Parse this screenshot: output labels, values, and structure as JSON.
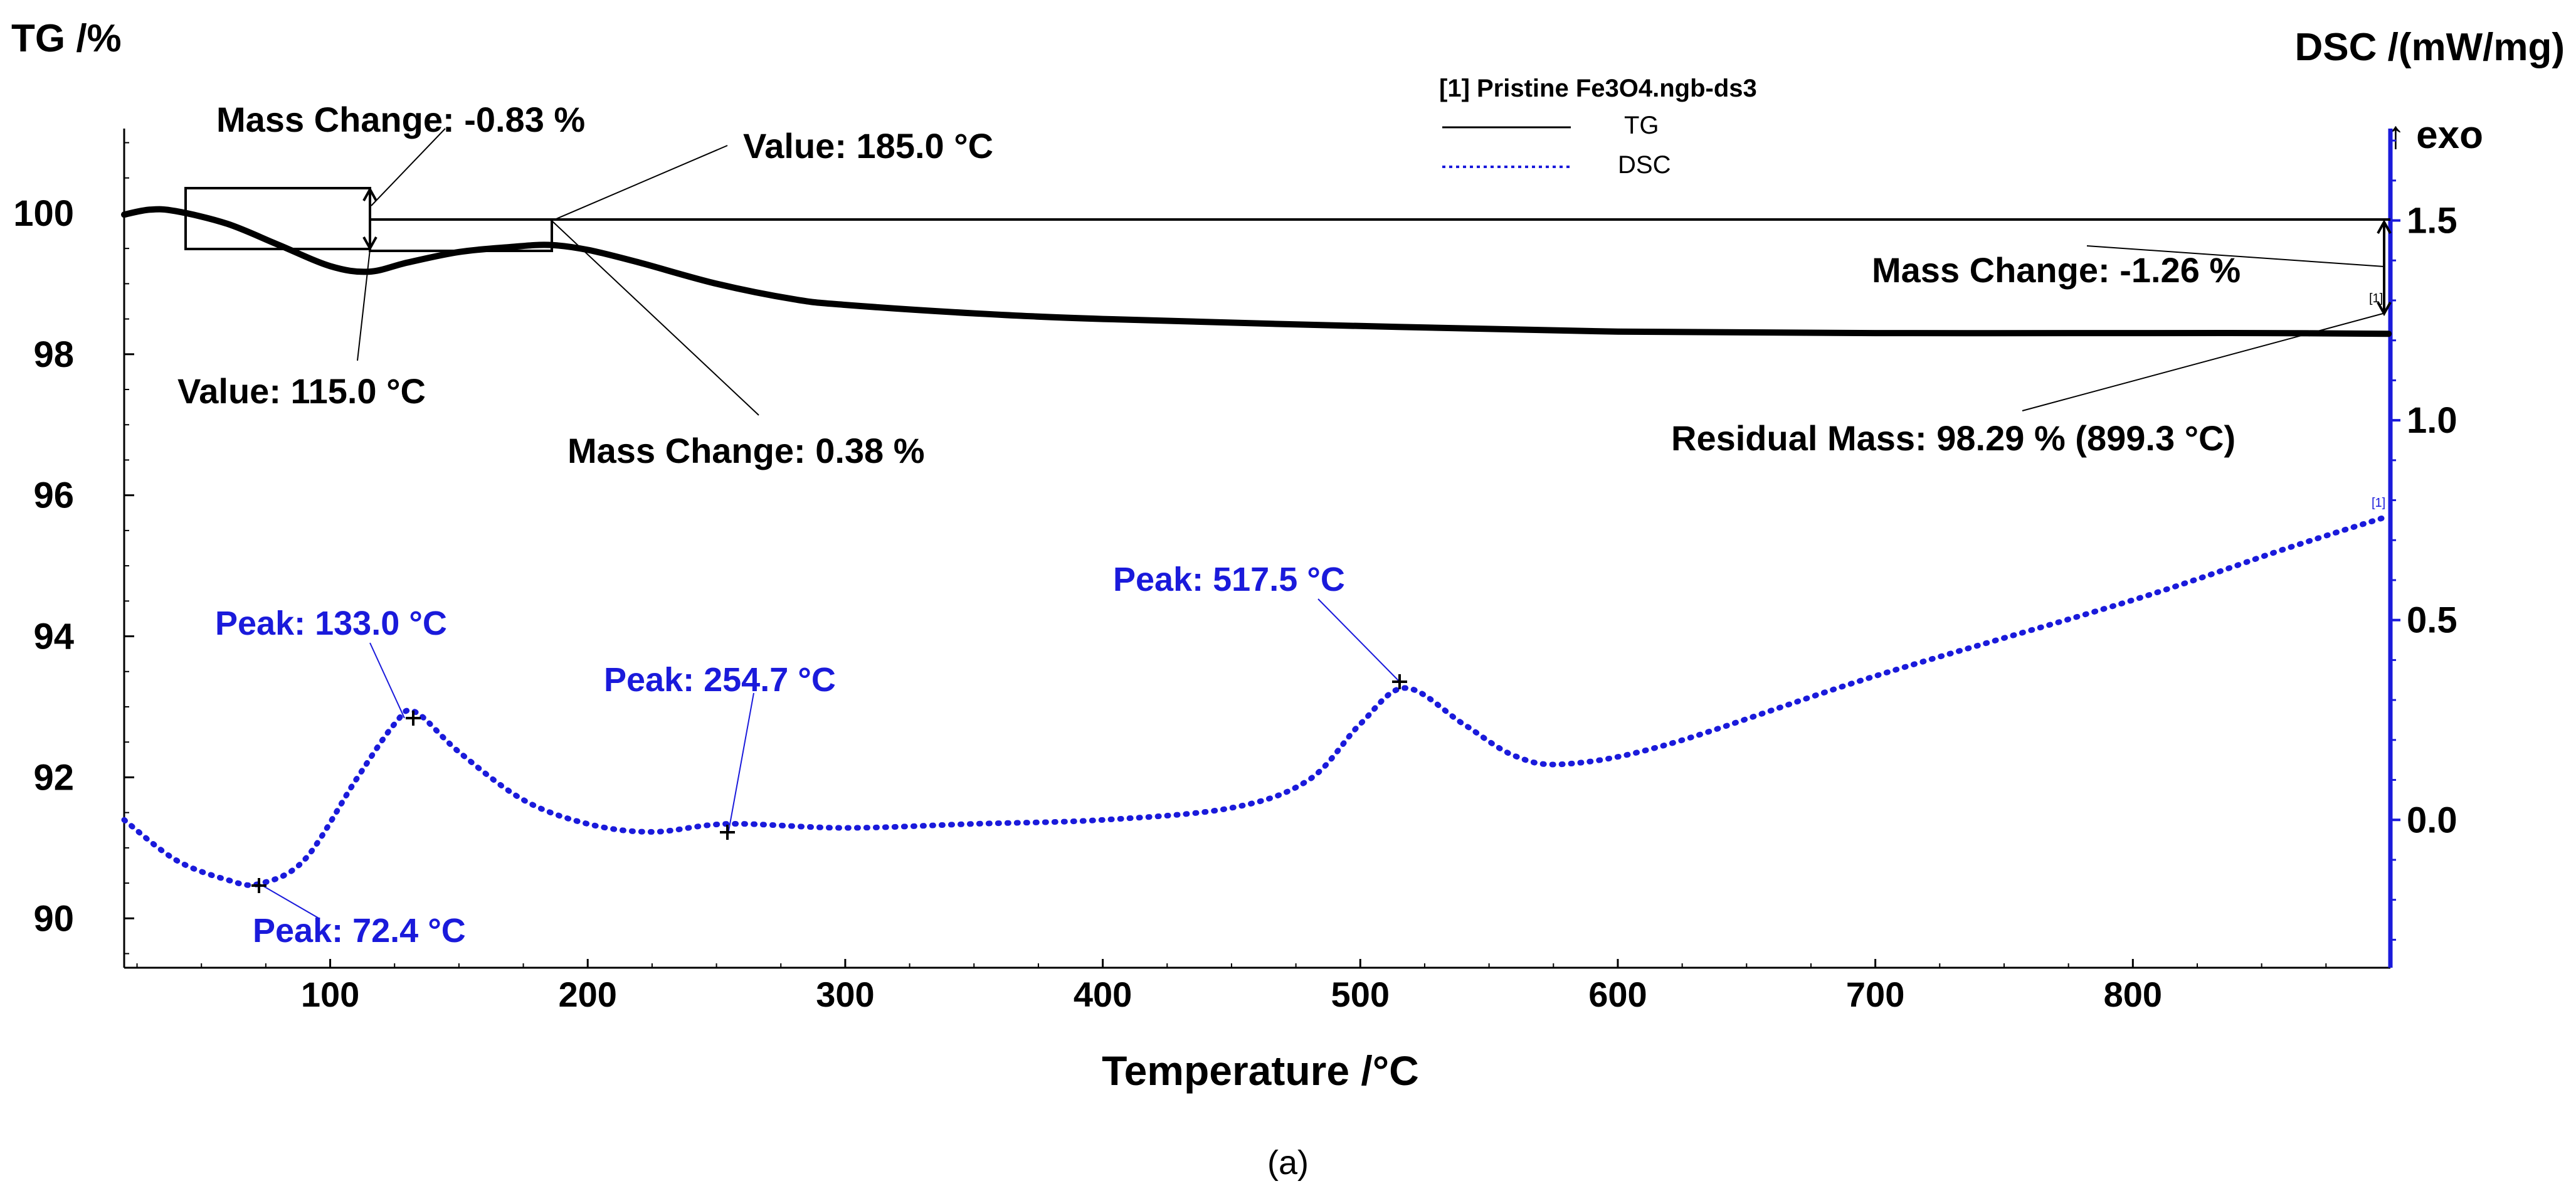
{
  "chart_data": {
    "type": "line",
    "title": "[1]  Pristine Fe3O4.ngb-ds3",
    "xlabel": "Temperature /°C",
    "ylabel_left": "TG /%",
    "ylabel_right": "DSC /(mW/mg)",
    "exo_label": "↑ exo",
    "caption": "(a)",
    "xlim": [
      20,
      900
    ],
    "ylim_left": [
      89.3,
      101.2
    ],
    "ylim_right": [
      -0.37,
      1.73
    ],
    "x_ticks": [
      100,
      200,
      300,
      400,
      500,
      600,
      700,
      800
    ],
    "y_left_ticks": [
      90,
      92,
      94,
      96,
      98,
      100
    ],
    "y_right_ticks": [
      0.0,
      0.5,
      1.0,
      1.5
    ],
    "x_tick_labels": [
      "100",
      "200",
      "300",
      "400",
      "500",
      "600",
      "700",
      "800"
    ],
    "y_left_tick_labels": [
      "90",
      "92",
      "94",
      "96",
      "98",
      "100"
    ],
    "y_right_tick_labels": [
      "0.0",
      "0.5",
      "1.0",
      "1.5"
    ],
    "legend": {
      "title": "[1]  Pristine Fe3O4.ngb-ds3",
      "entries": [
        {
          "label": "TG",
          "style": "solid",
          "color": "#000000"
        },
        {
          "label": "DSC",
          "style": "dotted",
          "color": "#1a1adb"
        }
      ]
    },
    "series": [
      {
        "name": "TG",
        "axis": "left",
        "color": "#000000",
        "x": [
          20,
          30,
          40,
          60,
          80,
          100,
          115,
          130,
          150,
          170,
          185,
          200,
          220,
          250,
          280,
          300,
          350,
          400,
          500,
          600,
          700,
          800,
          850,
          899.3
        ],
        "y": [
          99.98,
          100.05,
          100.03,
          99.85,
          99.55,
          99.25,
          99.17,
          99.3,
          99.45,
          99.52,
          99.55,
          99.48,
          99.3,
          99.0,
          98.78,
          98.7,
          98.58,
          98.5,
          98.4,
          98.32,
          98.3,
          98.3,
          98.3,
          98.29
        ]
      },
      {
        "name": "DSC",
        "axis": "right",
        "color": "#1a1adb",
        "x": [
          20,
          40,
          60,
          72.4,
          90,
          110,
          125,
          133,
          150,
          175,
          200,
          225,
          254.7,
          300,
          350,
          400,
          450,
          480,
          500,
          517.5,
          540,
          560,
          580,
          620,
          700,
          800,
          860,
          899.3
        ],
        "y": [
          0.0,
          -0.1,
          -0.15,
          -0.16,
          -0.1,
          0.1,
          0.24,
          0.27,
          0.17,
          0.05,
          -0.01,
          -0.03,
          -0.01,
          -0.02,
          -0.01,
          0.0,
          0.03,
          0.1,
          0.24,
          0.33,
          0.24,
          0.16,
          0.14,
          0.19,
          0.36,
          0.55,
          0.68,
          0.76
        ]
      }
    ],
    "annotations": [
      {
        "text": "Mass Change: -0.83 %",
        "color": "#000000"
      },
      {
        "text": "Value: 185.0 °C",
        "color": "#000000"
      },
      {
        "text": "Value: 115.0 °C",
        "color": "#000000"
      },
      {
        "text": "Mass Change: 0.38 %",
        "color": "#000000"
      },
      {
        "text": "Mass Change: -1.26 %",
        "color": "#000000"
      },
      {
        "text": "Residual Mass: 98.29 % (899.3 °C)",
        "color": "#000000"
      },
      {
        "text": "Peak: 133.0 °C",
        "color": "#1a1adb"
      },
      {
        "text": "Peak: 254.7 °C",
        "color": "#1a1adb"
      },
      {
        "text": "Peak: 517.5 °C",
        "color": "#1a1adb"
      },
      {
        "text": "Peak: 72.4 °C",
        "color": "#1a1adb"
      }
    ],
    "end_marker": "[1]",
    "grid": false
  }
}
